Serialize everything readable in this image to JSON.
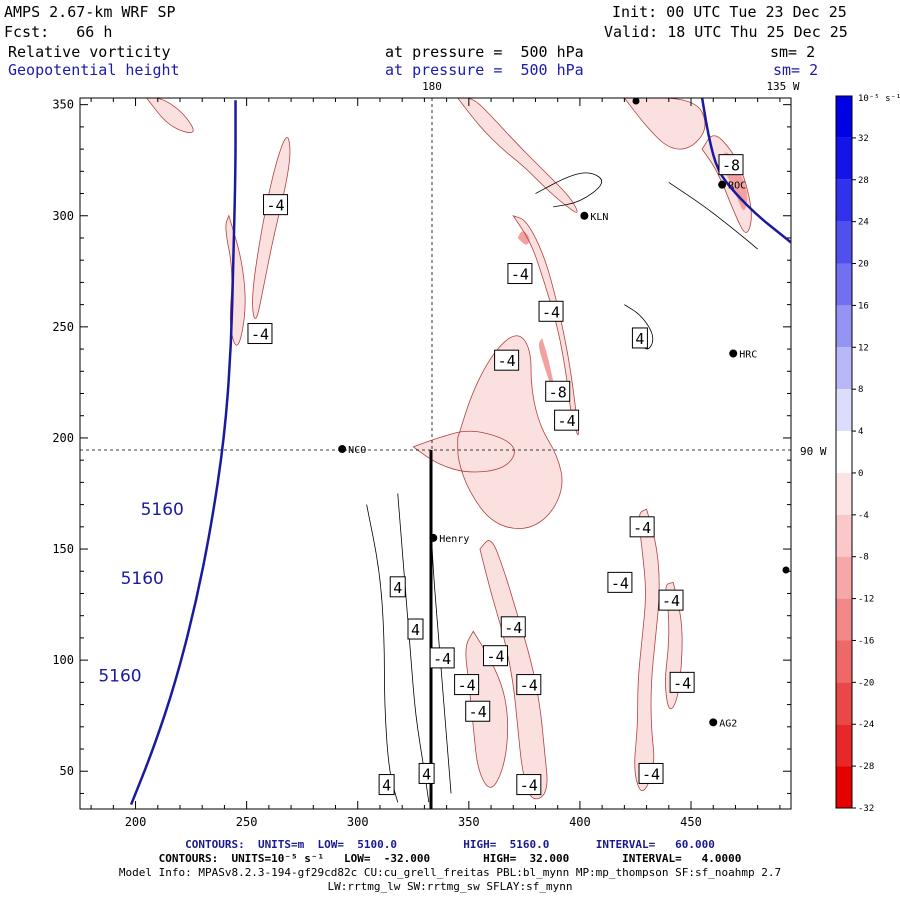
{
  "header": {
    "model": "AMPS 2.67-km WRF SP",
    "init": "Init: 00 UTC Tue 23 Dec 25",
    "fcst": "Fcst:   66 h",
    "valid": "Valid: 18 UTC Thu 25 Dec 25",
    "field1": "Relative vorticity",
    "field1_level": "at pressure =  500 hPa",
    "field1_sm": "sm= 2",
    "field2": "Geopotential height",
    "field2_level": "at pressure =  500 hPa",
    "field2_sm": "sm= 2"
  },
  "map_labels": {
    "lon_180": "180",
    "lon_135w": "135 W",
    "lon_90w": "90 W",
    "stations": [
      {
        "name": "NCO",
        "x": 293,
        "y": 195
      },
      {
        "name": "KLN",
        "x": 402,
        "y": 300
      },
      {
        "name": "HRC",
        "x": 469,
        "y": 238
      },
      {
        "name": "AG2",
        "x": 460,
        "y": 72
      },
      {
        "name": "Henry",
        "x": 334,
        "y": 155
      },
      {
        "name": "ROC",
        "x": 464,
        "y": 314
      }
    ]
  },
  "chart_data": {
    "type": "contour",
    "xlim": [
      175,
      495
    ],
    "ylim": [
      33,
      353
    ],
    "xticks": [
      200,
      250,
      300,
      350,
      400,
      450
    ],
    "yticks": [
      50,
      100,
      150,
      200,
      250,
      300,
      350
    ],
    "height_contours": [
      {
        "value": 5160,
        "label": "5160",
        "points": [
          [
            198,
            35
          ],
          [
            208,
            60
          ],
          [
            218,
            90
          ],
          [
            227,
            125
          ],
          [
            234,
            160
          ],
          [
            240,
            200
          ],
          [
            243,
            240
          ],
          [
            244,
            280
          ],
          [
            245,
            320
          ],
          [
            245,
            352
          ]
        ]
      }
    ],
    "height_labels": [
      {
        "text": "5160",
        "x": 212,
        "y": 168
      },
      {
        "text": "5160",
        "x": 203,
        "y": 137
      },
      {
        "text": "5160",
        "x": 193,
        "y": 93
      }
    ],
    "vorticity_labels": [
      {
        "text": "-4",
        "x": 263,
        "y": 305
      },
      {
        "text": "-4",
        "x": 256,
        "y": 247
      },
      {
        "text": "-4",
        "x": 373,
        "y": 274
      },
      {
        "text": "-4",
        "x": 387,
        "y": 257
      },
      {
        "text": "-4",
        "x": 367,
        "y": 235
      },
      {
        "text": "-8",
        "x": 390,
        "y": 221
      },
      {
        "text": "-4",
        "x": 394,
        "y": 208
      },
      {
        "text": "4",
        "x": 427,
        "y": 245
      },
      {
        "text": "-4",
        "x": 428,
        "y": 160
      },
      {
        "text": "-4",
        "x": 418,
        "y": 135
      },
      {
        "text": "-4",
        "x": 441,
        "y": 127
      },
      {
        "text": "4",
        "x": 318,
        "y": 133
      },
      {
        "text": "4",
        "x": 326,
        "y": 114
      },
      {
        "text": "-4",
        "x": 370,
        "y": 115
      },
      {
        "text": "-4",
        "x": 362,
        "y": 102
      },
      {
        "text": "-4",
        "x": 338,
        "y": 101
      },
      {
        "text": "-4",
        "x": 349,
        "y": 89
      },
      {
        "text": "-4",
        "x": 377,
        "y": 89
      },
      {
        "text": "-4",
        "x": 354,
        "y": 77
      },
      {
        "text": "-4",
        "x": 446,
        "y": 90
      },
      {
        "text": "4",
        "x": 331,
        "y": 49
      },
      {
        "text": "4",
        "x": 313,
        "y": 44
      },
      {
        "text": "-4",
        "x": 377,
        "y": 44
      },
      {
        "text": "-4",
        "x": 432,
        "y": 49
      },
      {
        "text": "-8",
        "x": 468,
        "y": 323
      }
    ],
    "colorbar": {
      "unit": "10⁻⁵ s⁻¹",
      "levels": [
        32,
        28,
        24,
        20,
        16,
        12,
        8,
        4,
        0,
        -4,
        -8,
        -12,
        -16,
        -20,
        -24,
        -28,
        -32
      ],
      "colors": [
        "#0000e6",
        "#1414ea",
        "#3232ec",
        "#5050ee",
        "#7070f0",
        "#9494f4",
        "#b8b8f8",
        "#dcdcfc",
        "#ffffff",
        "#fce4e4",
        "#fac8c8",
        "#f6a8a8",
        "#f28888",
        "#ee6868",
        "#ea4848",
        "#e82828",
        "#e60000"
      ]
    },
    "footer": {
      "line1": "CONTOURS:  UNITS=m  LOW=  5100.0          HIGH=  5160.0       INTERVAL=   60.000",
      "line2": "CONTOURS:  UNITS=10⁻⁵ s⁻¹   LOW=  -32.000        HIGH=  32.000        INTERVAL=   4.0000",
      "line3": "Model Info: MPASv8.2.3-194-gf29cd82c CU:cu_grell_freitas PBL:bl_mynn MP:mp_thompson SF:sf_noahmp 2.7",
      "line4": "LW:rrtmg_lw SW:rrtmg_sw SFLAY:sf_mynn"
    },
    "colors": {
      "height": "#1a1aa0",
      "vorticity_line": "#000000",
      "negative_fill": "#fbe0e0",
      "strong_fill": "#f2a0a0"
    }
  }
}
